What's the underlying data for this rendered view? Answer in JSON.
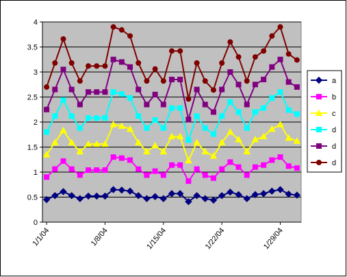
{
  "chart_data": {
    "type": "line",
    "categories": [
      "1/1/04",
      null,
      null,
      null,
      null,
      null,
      null,
      "1/8/04",
      null,
      null,
      null,
      null,
      null,
      null,
      "1/15/04",
      null,
      null,
      null,
      null,
      null,
      null,
      "1/22/04",
      null,
      null,
      null,
      null,
      null,
      null,
      "1/29/04",
      null,
      null
    ],
    "series": [
      {
        "name": "a",
        "color": "#000080",
        "marker": "diamond",
        "values": [
          0.45,
          0.53,
          0.61,
          0.53,
          0.47,
          0.52,
          0.52,
          0.52,
          0.65,
          0.64,
          0.62,
          0.53,
          0.47,
          0.51,
          0.47,
          0.57,
          0.57,
          0.41,
          0.53,
          0.47,
          0.44,
          0.53,
          0.6,
          0.55,
          0.47,
          0.55,
          0.57,
          0.62,
          0.65,
          0.56,
          0.54
        ]
      },
      {
        "name": "b",
        "color": "#ff00ff",
        "marker": "square",
        "values": [
          0.9,
          1.06,
          1.22,
          1.06,
          0.94,
          1.04,
          1.04,
          1.04,
          1.3,
          1.28,
          1.24,
          1.06,
          0.94,
          1.02,
          0.94,
          1.14,
          1.14,
          0.82,
          1.06,
          0.94,
          0.88,
          1.06,
          1.2,
          1.1,
          0.94,
          1.1,
          1.14,
          1.24,
          1.3,
          1.12,
          1.08
        ]
      },
      {
        "name": "c",
        "color": "#ffff00",
        "marker": "triangle",
        "values": [
          1.35,
          1.59,
          1.83,
          1.59,
          1.41,
          1.56,
          1.56,
          1.56,
          1.95,
          1.92,
          1.86,
          1.59,
          1.41,
          1.53,
          1.41,
          1.71,
          1.71,
          1.23,
          1.59,
          1.41,
          1.32,
          1.59,
          1.8,
          1.65,
          1.41,
          1.65,
          1.71,
          1.86,
          1.95,
          1.68,
          1.62
        ]
      },
      {
        "name": "d",
        "color": "#00ffff",
        "marker": "square",
        "values": [
          1.8,
          2.12,
          2.44,
          2.12,
          1.88,
          2.08,
          2.08,
          2.08,
          2.6,
          2.56,
          2.48,
          2.12,
          1.88,
          2.04,
          1.88,
          2.28,
          2.28,
          1.64,
          2.12,
          1.88,
          1.76,
          2.12,
          2.4,
          2.2,
          1.88,
          2.2,
          2.28,
          2.48,
          2.6,
          2.24,
          2.16
        ]
      },
      {
        "name": "d",
        "color": "#800080",
        "marker": "square",
        "values": [
          2.25,
          2.65,
          3.05,
          2.65,
          2.35,
          2.6,
          2.6,
          2.6,
          3.25,
          3.2,
          3.1,
          2.65,
          2.35,
          2.55,
          2.35,
          2.85,
          2.85,
          2.05,
          2.65,
          2.35,
          2.2,
          2.65,
          3,
          2.75,
          2.35,
          2.75,
          2.85,
          3.1,
          3.25,
          2.8,
          2.7
        ]
      },
      {
        "name": "d",
        "color": "#800000",
        "marker": "circle",
        "values": [
          2.7,
          3.18,
          3.66,
          3.18,
          2.82,
          3.12,
          3.12,
          3.12,
          3.9,
          3.84,
          3.72,
          3.18,
          2.82,
          3.06,
          2.82,
          3.42,
          3.42,
          2.46,
          3.18,
          2.82,
          2.64,
          3.18,
          3.6,
          3.3,
          2.82,
          3.3,
          3.42,
          3.72,
          3.9,
          3.36,
          3.24
        ]
      }
    ],
    "ylim": [
      0,
      4
    ],
    "yticks": [
      0,
      0.5,
      1,
      1.5,
      2,
      2.5,
      3,
      3.5,
      4
    ],
    "grid": true,
    "legend": "right",
    "plot_color": "#c0c0c0"
  }
}
